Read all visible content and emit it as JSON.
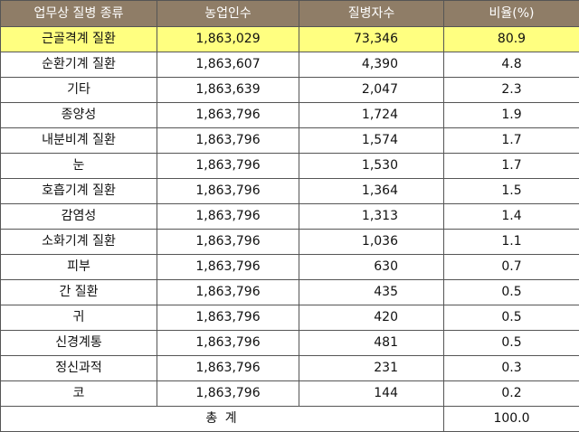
{
  "table": {
    "headers": [
      "업무상 질병 종류",
      "농업인수",
      "질병자수",
      "비율(%)"
    ],
    "rows": [
      {
        "name": "근골격계 질환",
        "workers": "1,863,029",
        "patients": "73,346",
        "ratio": "80.9"
      },
      {
        "name": "순환기계 질환",
        "workers": "1,863,607",
        "patients": "4,390",
        "ratio": "4.8"
      },
      {
        "name": "기타",
        "workers": "1,863,639",
        "patients": "2,047",
        "ratio": "2.3"
      },
      {
        "name": "종양성",
        "workers": "1,863,796",
        "patients": "1,724",
        "ratio": "1.9"
      },
      {
        "name": "내분비계 질환",
        "workers": "1,863,796",
        "patients": "1,574",
        "ratio": "1.7"
      },
      {
        "name": "눈",
        "workers": "1,863,796",
        "patients": "1,530",
        "ratio": "1.7"
      },
      {
        "name": "호흡기계 질환",
        "workers": "1,863,796",
        "patients": "1,364",
        "ratio": "1.5"
      },
      {
        "name": "감염성",
        "workers": "1,863,796",
        "patients": "1,313",
        "ratio": "1.4"
      },
      {
        "name": "소화기계 질환",
        "workers": "1,863,796",
        "patients": "1,036",
        "ratio": "1.1"
      },
      {
        "name": "피부",
        "workers": "1,863,796",
        "patients": "630",
        "ratio": "0.7"
      },
      {
        "name": "간 질환",
        "workers": "1,863,796",
        "patients": "435",
        "ratio": "0.5"
      },
      {
        "name": "귀",
        "workers": "1,863,796",
        "patients": "420",
        "ratio": "0.5"
      },
      {
        "name": "신경계통",
        "workers": "1,863,796",
        "patients": "481",
        "ratio": "0.5"
      },
      {
        "name": "정신과적",
        "workers": "1,863,796",
        "patients": "231",
        "ratio": "0.3"
      },
      {
        "name": "코",
        "workers": "1,863,796",
        "patients": "144",
        "ratio": "0.2"
      }
    ],
    "total": {
      "label": "총 계",
      "ratio": "100.0"
    }
  },
  "colors": {
    "header_background": "#8f7d67",
    "header_text": "#ffffff",
    "highlight_row": "#ffff80",
    "border": "#555555"
  }
}
